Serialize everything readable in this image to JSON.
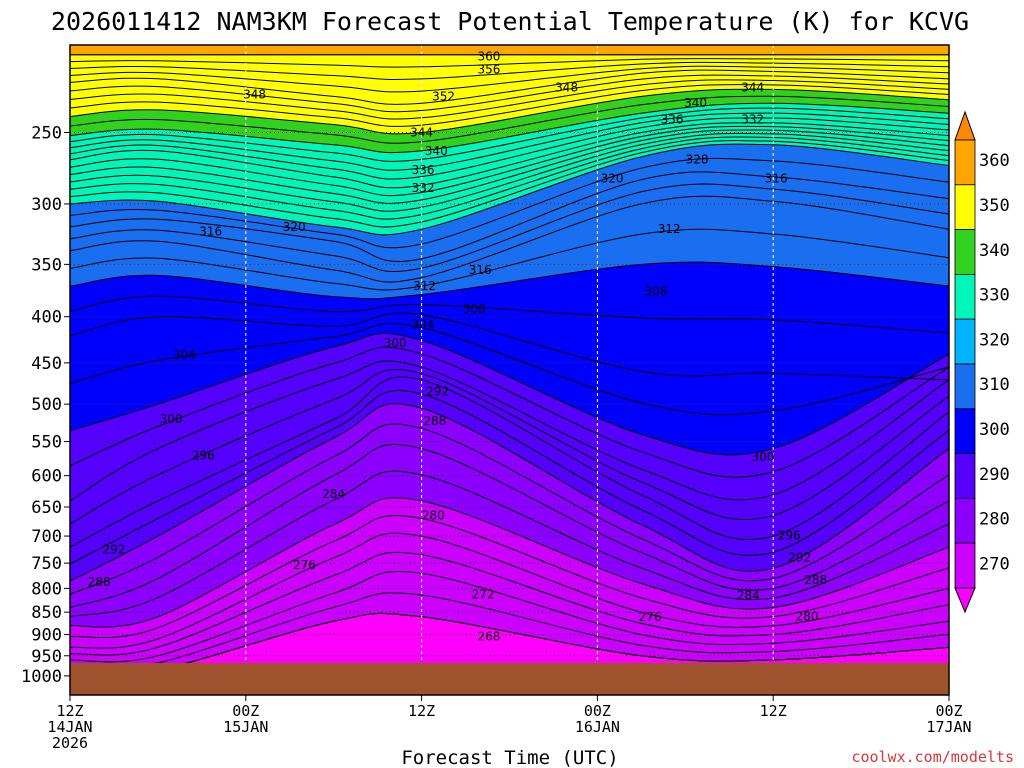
{
  "title": "2026011412 NAM3KM Forecast Potential Temperature (K) for KCVG",
  "x_axis_label": "Forecast Time (UTC)",
  "credit": "coolwx.com/modelts",
  "chart_data": {
    "type": "heatmap",
    "title": "2026011412 NAM3KM Forecast Potential Temperature (K) for KCVG",
    "xlabel": "Forecast Time (UTC)",
    "ylabel": "",
    "x_range_hours_after_init": [
      0,
      60
    ],
    "x_ticks": [
      {
        "hour": 0,
        "lines": [
          "12Z",
          "14JAN",
          "2026"
        ]
      },
      {
        "hour": 12,
        "lines": [
          "00Z",
          "15JAN"
        ]
      },
      {
        "hour": 24,
        "lines": [
          "12Z"
        ]
      },
      {
        "hour": 36,
        "lines": [
          "00Z",
          "16JAN"
        ]
      },
      {
        "hour": 48,
        "lines": [
          "12Z"
        ]
      },
      {
        "hour": 60,
        "lines": [
          "00Z",
          "17JAN"
        ]
      }
    ],
    "y_axis": {
      "units": "hPa",
      "scale": "log",
      "inverted": true,
      "range": [
        1050,
        200
      ]
    },
    "y_ticks": [
      250,
      300,
      350,
      400,
      450,
      500,
      550,
      600,
      650,
      700,
      750,
      800,
      850,
      900,
      950,
      1000
    ],
    "grid": "dotted",
    "colorbar": {
      "position": "right",
      "levels": [
        270,
        280,
        290,
        300,
        310,
        320,
        330,
        340,
        350,
        360
      ],
      "colors": [
        "#ff00ff",
        "#cc00ff",
        "#8c00ff",
        "#5500ff",
        "#0000ff",
        "#1a6ef0",
        "#00b4ff",
        "#00f5b9",
        "#33d11f",
        "#ffff00",
        "#ffa500",
        "#ff8800"
      ]
    },
    "surface_band_color": "#a0522d",
    "isentropes": [
      {
        "theta": 360,
        "p": [
          205,
          205,
          205,
          205,
          205,
          205,
          205
        ]
      },
      {
        "theta": 352,
        "p": [
          220,
          218,
          228,
          232,
          215,
          214,
          218
        ]
      },
      {
        "theta": 344,
        "p": [
          240,
          236,
          245,
          250,
          228,
          224,
          230
        ]
      },
      {
        "theta": 340,
        "p": [
          252,
          248,
          258,
          262,
          238,
          232,
          238
        ]
      },
      {
        "theta": 332,
        "p": [
          268,
          262,
          280,
          286,
          250,
          244,
          252
        ]
      },
      {
        "theta": 320,
        "p": [
          300,
          298,
          318,
          320,
          266,
          258,
          272
        ]
      },
      {
        "theta": 316,
        "p": [
          318,
          312,
          330,
          345,
          282,
          280,
          296
        ]
      },
      {
        "theta": 312,
        "p": [
          338,
          330,
          355,
          362,
          300,
          298,
          320
        ]
      },
      {
        "theta": 308,
        "p": [
          370,
          360,
          380,
          378,
          350,
          352,
          370
        ]
      },
      {
        "theta": 304,
        "p": [
          420,
          400,
          410,
          398,
          460,
          462,
          470
        ]
      },
      {
        "theta": 300,
        "p": [
          535,
          500,
          432,
          425,
          540,
          560,
          440
        ]
      },
      {
        "theta": 296,
        "p": [
          640,
          560,
          470,
          455,
          590,
          630,
          470
        ]
      },
      {
        "theta": 292,
        "p": [
          720,
          640,
          520,
          470,
          630,
          700,
          510
        ]
      },
      {
        "theta": 288,
        "p": [
          785,
          700,
          545,
          505,
          680,
          760,
          560
        ]
      },
      {
        "theta": 284,
        "p": [
          840,
          780,
          600,
          560,
          730,
          800,
          640
        ]
      },
      {
        "theta": 280,
        "p": [
          880,
          860,
          680,
          640,
          790,
          840,
          720
        ]
      },
      {
        "theta": 276,
        "p": [
          930,
          910,
          740,
          700,
          850,
          880,
          800
        ]
      },
      {
        "theta": 272,
        "p": [
          960,
          950,
          810,
          770,
          900,
          920,
          870
        ]
      },
      {
        "theta": 268,
        "p": [
          990,
          985,
          870,
          860,
          950,
          960,
          930
        ]
      }
    ],
    "isentrope_hours": [
      0,
      6,
      18,
      24,
      39,
      48,
      60
    ],
    "contour_labels": [
      {
        "text": "360",
        "hour": 28.6,
        "p": 206
      },
      {
        "text": "356",
        "hour": 28.6,
        "p": 213
      },
      {
        "text": "352",
        "hour": 25.5,
        "p": 228
      },
      {
        "text": "348",
        "hour": 12.6,
        "p": 227
      },
      {
        "text": "348",
        "hour": 33.9,
        "p": 223
      },
      {
        "text": "344",
        "hour": 46.6,
        "p": 223
      },
      {
        "text": "340",
        "hour": 42.7,
        "p": 232
      },
      {
        "text": "336",
        "hour": 41.1,
        "p": 242
      },
      {
        "text": "332",
        "hour": 46.6,
        "p": 242
      },
      {
        "text": "328",
        "hour": 42.8,
        "p": 268
      },
      {
        "text": "344",
        "hour": 24.0,
        "p": 250
      },
      {
        "text": "340",
        "hour": 25.0,
        "p": 262
      },
      {
        "text": "336",
        "hour": 24.1,
        "p": 275
      },
      {
        "text": "332",
        "hour": 24.1,
        "p": 288
      },
      {
        "text": "320",
        "hour": 37.0,
        "p": 281
      },
      {
        "text": "316",
        "hour": 48.2,
        "p": 281
      },
      {
        "text": "312",
        "hour": 40.9,
        "p": 320
      },
      {
        "text": "316",
        "hour": 9.6,
        "p": 322
      },
      {
        "text": "320",
        "hour": 15.3,
        "p": 318
      },
      {
        "text": "316",
        "hour": 28.0,
        "p": 355
      },
      {
        "text": "312",
        "hour": 24.2,
        "p": 370
      },
      {
        "text": "308",
        "hour": 40.0,
        "p": 375
      },
      {
        "text": "308",
        "hour": 27.6,
        "p": 392
      },
      {
        "text": "304",
        "hour": 24.1,
        "p": 408
      },
      {
        "text": "300",
        "hour": 22.2,
        "p": 428
      },
      {
        "text": "304",
        "hour": 7.8,
        "p": 441
      },
      {
        "text": "292",
        "hour": 25.1,
        "p": 484
      },
      {
        "text": "300",
        "hour": 6.9,
        "p": 519
      },
      {
        "text": "288",
        "hour": 24.9,
        "p": 522
      },
      {
        "text": "296",
        "hour": 9.1,
        "p": 570
      },
      {
        "text": "300",
        "hour": 47.3,
        "p": 572
      },
      {
        "text": "284",
        "hour": 18.0,
        "p": 629
      },
      {
        "text": "280",
        "hour": 24.8,
        "p": 664
      },
      {
        "text": "296",
        "hour": 49.1,
        "p": 699
      },
      {
        "text": "292",
        "hour": 3.0,
        "p": 724
      },
      {
        "text": "292",
        "hour": 49.8,
        "p": 739
      },
      {
        "text": "276",
        "hour": 16.0,
        "p": 754
      },
      {
        "text": "288",
        "hour": 2.0,
        "p": 787
      },
      {
        "text": "288",
        "hour": 50.9,
        "p": 783
      },
      {
        "text": "272",
        "hour": 28.2,
        "p": 813
      },
      {
        "text": "284",
        "hour": 46.3,
        "p": 815
      },
      {
        "text": "276",
        "hour": 39.6,
        "p": 861
      },
      {
        "text": "280",
        "hour": 50.3,
        "p": 859
      },
      {
        "text": "268",
        "hour": 28.6,
        "p": 905
      }
    ]
  }
}
